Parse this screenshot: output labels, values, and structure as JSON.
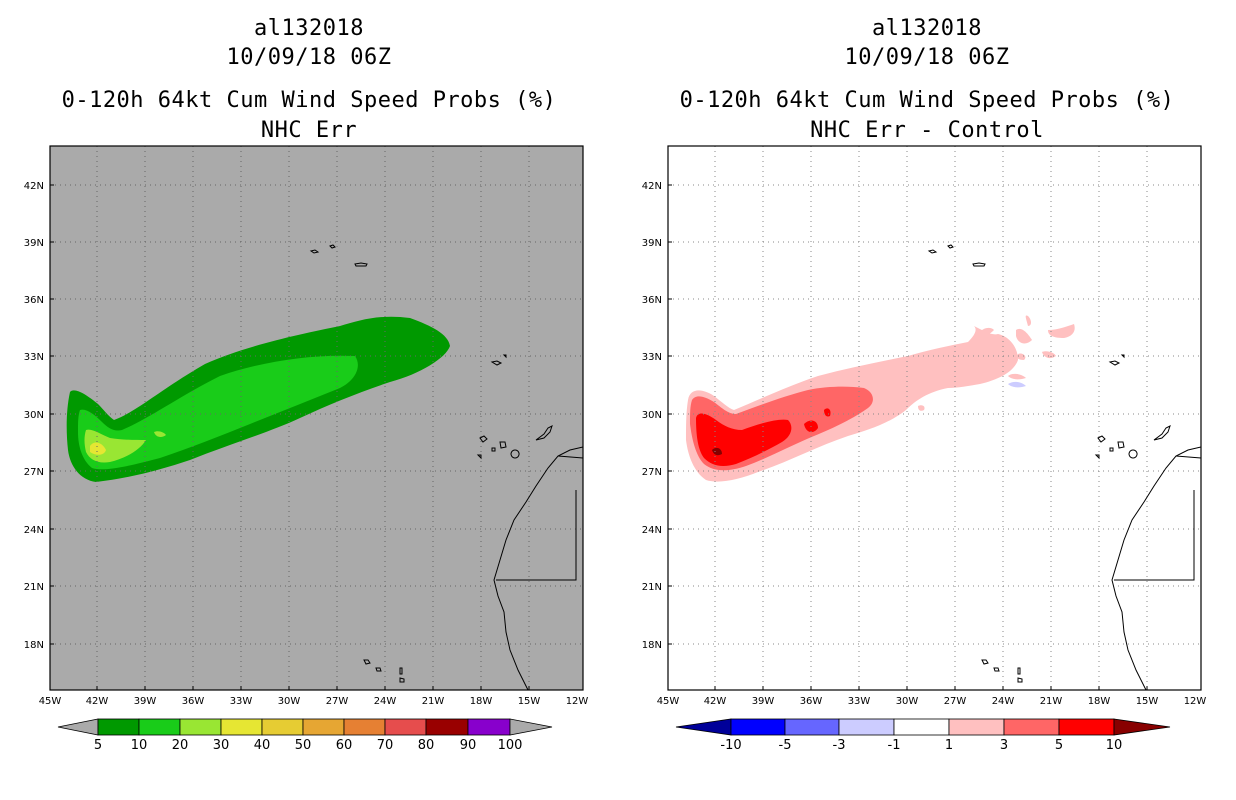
{
  "panels": [
    {
      "title_storm": "al132018",
      "title_time": "10/09/18 06Z",
      "title_product": "0-120h 64kt Cum Wind Speed Probs (%)",
      "title_sub": "NHC Err",
      "background": "#aaaaaa",
      "colorbar": {
        "labels": [
          "5",
          "10",
          "20",
          "30",
          "40",
          "50",
          "60",
          "70",
          "80",
          "90",
          "100"
        ],
        "colors": [
          "#009900",
          "#19cc19",
          "#99e633",
          "#e6e633",
          "#e6cc33",
          "#e6a633",
          "#e68033",
          "#e64d4d",
          "#990000",
          "#8800cc"
        ],
        "arrow_colors": [
          "#aaaaaa",
          "#aaaaaa"
        ]
      }
    },
    {
      "title_storm": "al132018",
      "title_time": "10/09/18 06Z",
      "title_product": "0-120h 64kt Cum Wind Speed Probs (%)",
      "title_sub": "NHC Err - Control",
      "background": "#ffffff",
      "colorbar": {
        "labels": [
          "-10",
          "-5",
          "-3",
          "-1",
          "1",
          "3",
          "5",
          "10"
        ],
        "colors": [
          "#0000ff",
          "#6666ff",
          "#ccccff",
          "#ffffff",
          "#ffc0c0",
          "#ff6666",
          "#ff0000"
        ],
        "arrow_colors": [
          "#000099",
          "#880000"
        ]
      }
    }
  ],
  "axes": {
    "lat_labels": [
      "42N",
      "39N",
      "36N",
      "33N",
      "30N",
      "27N",
      "24N",
      "21N",
      "18N"
    ],
    "lon_labels": [
      "45W",
      "42W",
      "39W",
      "36W",
      "33W",
      "30W",
      "27W",
      "24W",
      "21W",
      "18W",
      "15W",
      "12W"
    ]
  }
}
